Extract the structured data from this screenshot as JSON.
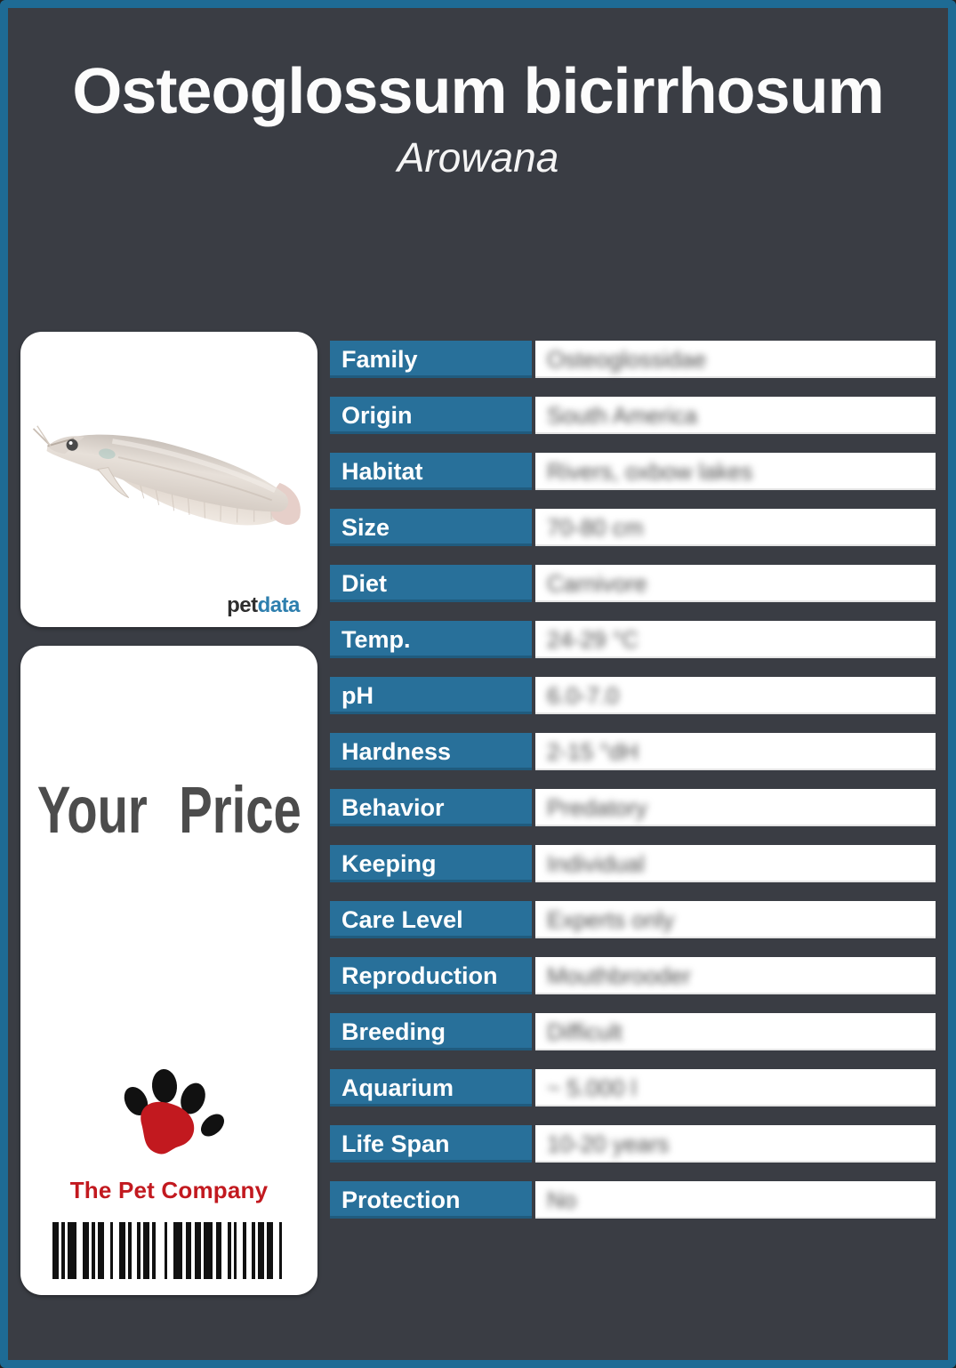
{
  "header": {
    "title": "Osteoglossum bicirrhosum",
    "subtitle": "Arowana"
  },
  "branding": {
    "petdata_pet": "pet",
    "petdata_data": "data"
  },
  "price_card": {
    "label": "Your Price",
    "company": "The Pet Company"
  },
  "table": {
    "rows": [
      {
        "label": "Family",
        "value": "Osteoglossidae"
      },
      {
        "label": "Origin",
        "value": "South America"
      },
      {
        "label": "Habitat",
        "value": "Rivers, oxbow lakes"
      },
      {
        "label": "Size",
        "value": "70-80 cm"
      },
      {
        "label": "Diet",
        "value": "Carnivore"
      },
      {
        "label": "Temp.",
        "value": "24-29 °C"
      },
      {
        "label": "pH",
        "value": "6.0-7.0"
      },
      {
        "label": "Hardness",
        "value": "2-15 °dH"
      },
      {
        "label": "Behavior",
        "value": "Predatory"
      },
      {
        "label": "Keeping",
        "value": "Individual"
      },
      {
        "label": "Care Level",
        "value": "Experts only"
      },
      {
        "label": "Reproduction",
        "value": "Mouthbrooder"
      },
      {
        "label": "Breeding",
        "value": "Difficult"
      },
      {
        "label": "Aquarium",
        "value": "~ 5.000 l"
      },
      {
        "label": "Life Span",
        "value": "10-20 years"
      },
      {
        "label": "Protection",
        "value": "No"
      }
    ]
  },
  "colors": {
    "background": "#3A3D44",
    "border_teal": "#1E6B95",
    "cell_teal": "#28709A",
    "company_red": "#C2191F",
    "petdata_blue": "#2E7FAE"
  }
}
